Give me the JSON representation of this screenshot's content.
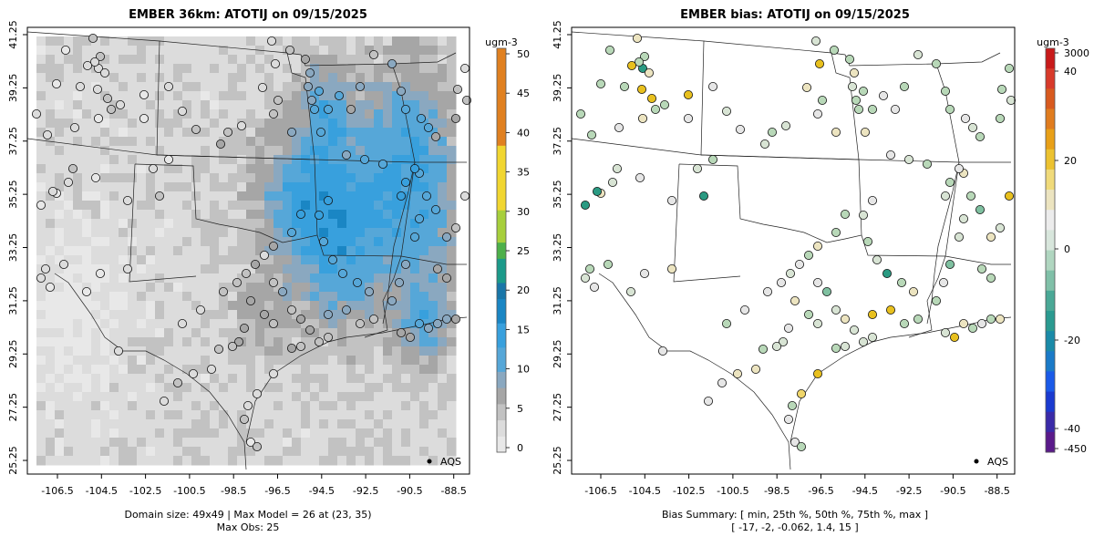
{
  "panels": [
    {
      "title": "EMBER 36km: ATOTIJ on 09/15/2025",
      "legend_unit": "ugm-3",
      "legend_ticks": [
        "0",
        "5",
        "10",
        "15",
        "20",
        "25",
        "30",
        "35",
        "40",
        "45",
        "50"
      ],
      "legend_point_label": "AQS",
      "footer_line1": "Domain size: 49x49 | Max Model = 26 at (23, 35)",
      "footer_line2": "Max Obs: 25"
    },
    {
      "title": "EMBER bias: ATOTIJ on 09/15/2025",
      "legend_unit": "ugm-3",
      "legend_ticks": [
        "-450",
        "-40",
        "-20",
        "0",
        "20",
        "40",
        "3000"
      ],
      "legend_point_label": "AQS",
      "footer_line1": "Bias Summary: [ min, 25th %, 50th %, 75th %, max ]",
      "footer_line2": "[ -17,   -2,   -0.062,   1.4,   15 ]"
    }
  ],
  "axes": {
    "x_ticks": [
      "-106.5",
      "-104.5",
      "-102.5",
      "-100.5",
      "-98.5",
      "-96.5",
      "-94.5",
      "-92.5",
      "-90.5",
      "-88.5"
    ],
    "y_ticks": [
      "41.25",
      "39.25",
      "37.25",
      "35.25",
      "33.25",
      "31.25",
      "29.25",
      "27.25",
      "25.25"
    ]
  },
  "chart_data": [
    {
      "type": "heatmap",
      "title": "EMBER 36km: ATOTIJ on 09/15/2025",
      "unit": "ugm-3",
      "color_range": [
        0,
        50
      ],
      "max_model": 26,
      "max_model_cell": [
        23,
        35
      ],
      "max_obs": 25,
      "domain_size": "49x49",
      "xlim": [
        -107.2,
        -88.2
      ],
      "ylim": [
        24.8,
        41.6
      ]
    },
    {
      "type": "scatter",
      "title": "EMBER bias: ATOTIJ on 09/15/2025",
      "unit": "ugm-3",
      "bias_summary": {
        "min": -17,
        "p25": -2,
        "median": -0.062,
        "p75": 1.4,
        "max": 15
      },
      "xlim": [
        -107.2,
        -88.2
      ],
      "ylim": [
        24.8,
        41.6
      ]
    }
  ]
}
